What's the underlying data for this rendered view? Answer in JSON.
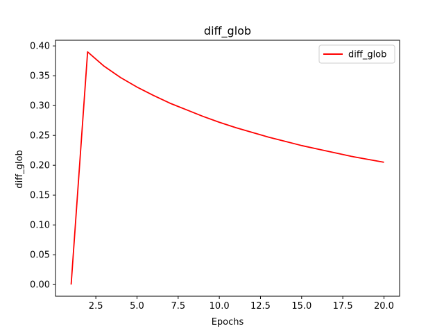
{
  "chart_data": {
    "type": "line",
    "title": "diff_glob",
    "xlabel": "Epochs",
    "ylabel": "diff_glob",
    "xlim": [
      0.05,
      20.95
    ],
    "ylim": [
      -0.0195,
      0.4095
    ],
    "xticks": [
      2.5,
      5.0,
      7.5,
      10.0,
      12.5,
      15.0,
      17.5,
      20.0
    ],
    "xtick_labels": [
      "2.5",
      "5.0",
      "7.5",
      "10.0",
      "12.5",
      "15.0",
      "17.5",
      "20.0"
    ],
    "yticks": [
      0.0,
      0.05,
      0.1,
      0.15,
      0.2,
      0.25,
      0.3,
      0.35,
      0.4
    ],
    "ytick_labels": [
      "0.00",
      "0.05",
      "0.10",
      "0.15",
      "0.20",
      "0.25",
      "0.30",
      "0.35",
      "0.40"
    ],
    "grid": false,
    "legend_position": "top-right",
    "series": [
      {
        "name": "diff_glob",
        "color": "#ff0000",
        "x": [
          1,
          2,
          3,
          4,
          5,
          6,
          7,
          8,
          9,
          10,
          11,
          12,
          13,
          14,
          15,
          16,
          17,
          18,
          19,
          20
        ],
        "y": [
          0.0,
          0.39,
          0.366,
          0.347,
          0.331,
          0.317,
          0.304,
          0.293,
          0.282,
          0.272,
          0.263,
          0.255,
          0.247,
          0.24,
          0.233,
          0.227,
          0.221,
          0.215,
          0.21,
          0.205
        ]
      }
    ]
  }
}
